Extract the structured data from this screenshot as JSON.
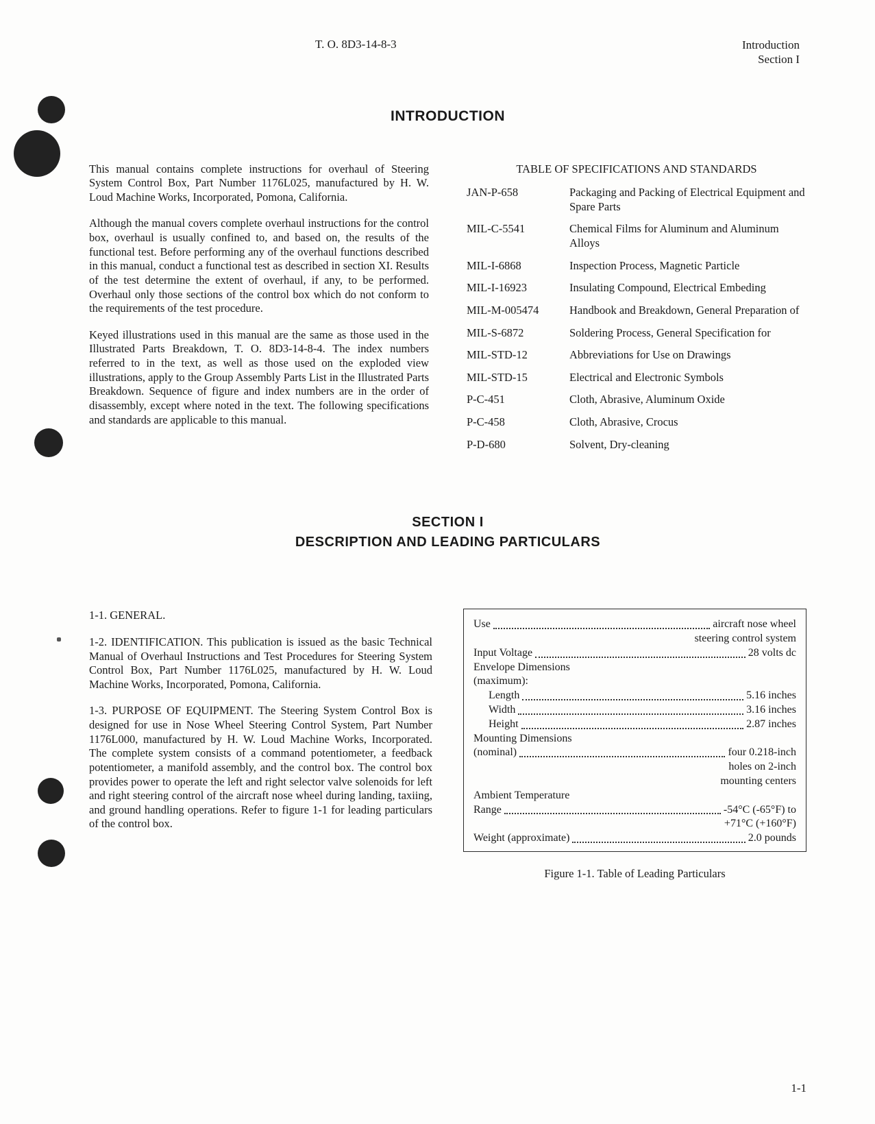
{
  "header": {
    "doc_id": "T. O. 8D3-14-8-3",
    "right_line1": "Introduction",
    "right_line2": "Section I"
  },
  "intro_heading": "INTRODUCTION",
  "intro_paras": {
    "p1": "This manual contains complete instructions for overhaul of Steering System Control Box, Part Number 1176L025, manufactured by H. W. Loud Machine Works, Incorporated, Pomona, California.",
    "p2": "Although the manual covers complete overhaul instructions for the control box, overhaul is usually confined to, and based on, the results of the functional test. Before performing any of the overhaul functions described in this manual, conduct a functional test as described in section XI. Results of the test determine the extent of overhaul, if any, to be performed. Overhaul only those sections of the control box which do not conform to the requirements of the test procedure.",
    "p3": "Keyed illustrations used in this manual are the same as those used in the Illustrated Parts Breakdown, T. O. 8D3-14-8-4. The index numbers referred to in the text, as well as those used on the exploded view illustrations, apply to the Group Assembly Parts List in the Illustrated Parts Breakdown. Sequence of figure and index numbers are in the order of disassembly, except where noted in the text. The following specifications and standards are applicable to this manual."
  },
  "specs_title": "TABLE OF SPECIFICATIONS AND STANDARDS",
  "specs": [
    {
      "code": "JAN-P-658",
      "desc": "Packaging and Packing of Electrical Equipment and Spare Parts"
    },
    {
      "code": "MIL-C-5541",
      "desc": "Chemical Films for Aluminum and Aluminum Alloys"
    },
    {
      "code": "MIL-I-6868",
      "desc": "Inspection Process, Magnetic Particle"
    },
    {
      "code": "MIL-I-16923",
      "desc": "Insulating Compound, Electrical Embeding"
    },
    {
      "code": "MIL-M-005474",
      "desc": "Handbook and Breakdown, General Preparation of"
    },
    {
      "code": "MIL-S-6872",
      "desc": "Soldering Process, General Specification for"
    },
    {
      "code": "MIL-STD-12",
      "desc": "Abbreviations for Use on Drawings"
    },
    {
      "code": "MIL-STD-15",
      "desc": "Electrical and Electronic Symbols"
    },
    {
      "code": "P-C-451",
      "desc": "Cloth, Abrasive, Aluminum Oxide"
    },
    {
      "code": "P-C-458",
      "desc": "Cloth, Abrasive, Crocus"
    },
    {
      "code": "P-D-680",
      "desc": "Solvent, Dry-cleaning"
    }
  ],
  "section1": {
    "num": "SECTION I",
    "title": "DESCRIPTION AND LEADING PARTICULARS",
    "p11": "1-1. GENERAL.",
    "p12": "1-2. IDENTIFICATION. This publication is issued as the basic Technical Manual of Overhaul Instructions and Test Procedures for Steering System Control Box, Part Number 1176L025, manufactured by H. W. Loud Machine Works, Incorporated, Pomona, California.",
    "p13": "1-3. PURPOSE OF EQUIPMENT. The Steering System Control Box is designed for use in Nose Wheel Steering Control System, Part Number 1176L000, manufactured by H. W. Loud Machine Works, Incorporated. The complete system consists of a command potentiometer, a feedback potentiometer, a manifold assembly, and the control box. The control box provides power to operate the left and right selector valve solenoids for left and right steering control of the aircraft nose wheel during landing, taxiing, and ground handling operations. Refer to figure 1-1 for leading particulars of the control box."
  },
  "leading_particulars": {
    "rows": [
      {
        "label": "Use",
        "value": "aircraft nose wheel",
        "type": "dot"
      },
      {
        "label": "",
        "value": "steering control system",
        "type": "right"
      },
      {
        "label": "Input Voltage",
        "value": "28 volts dc",
        "type": "dot"
      },
      {
        "label": "Envelope Dimensions",
        "value": "",
        "type": "plain"
      },
      {
        "label": "(maximum):",
        "value": "",
        "type": "plain"
      },
      {
        "label": "Length",
        "value": "5.16 inches",
        "type": "dot",
        "indent": true
      },
      {
        "label": "Width",
        "value": "3.16 inches",
        "type": "dot",
        "indent": true
      },
      {
        "label": "Height",
        "value": "2.87 inches",
        "type": "dot",
        "indent": true
      },
      {
        "label": "Mounting Dimensions",
        "value": "",
        "type": "plain"
      },
      {
        "label": "(nominal)",
        "value": "four 0.218-inch",
        "type": "dot"
      },
      {
        "label": "",
        "value": "holes on 2-inch",
        "type": "right"
      },
      {
        "label": "",
        "value": "mounting centers",
        "type": "right"
      },
      {
        "label": "Ambient Temperature",
        "value": "",
        "type": "plain"
      },
      {
        "label": "Range",
        "value": "-54°C (-65°F) to",
        "type": "dot"
      },
      {
        "label": "",
        "value": "+71°C (+160°F)",
        "type": "right"
      },
      {
        "label": "Weight (approximate)",
        "value": "2.0 pounds",
        "type": "dot"
      }
    ],
    "caption": "Figure 1-1. Table of Leading Particulars"
  },
  "page_num": "1-1",
  "colors": {
    "page_bg": "#fdfdfc",
    "text": "#1a1a1a",
    "hole": "#222222",
    "border": "#2a2a2a"
  },
  "fonts": {
    "body_family": "Times New Roman",
    "heading_family": "Arial",
    "body_size_pt": 12,
    "heading_size_pt": 15
  }
}
